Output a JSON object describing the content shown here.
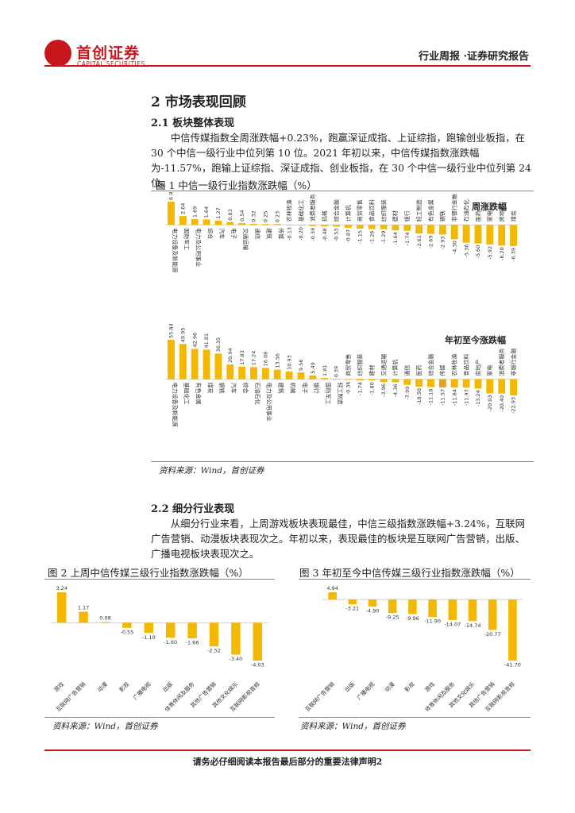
{
  "header": {
    "logo_cn": "首创证券",
    "logo_en": "CAPITAL SECURITIES",
    "report_type": "行业周报 ·证券研究报告"
  },
  "section2": {
    "title": "2 市场表现回顾",
    "sub1_title": "2.1  板块整体表现",
    "sub1_text": "中信传媒指数全周涨跌幅+0.23%，跑赢深证成指、上证综指，跑输创业板指，在 30 个中信一级行业中位列第 10 位。2021 年初以来，中信传媒指数涨跌幅为-11.57%，跑输上证综指、深证成指、创业板指，在 30 个中信一级行业中位列第 24 位。",
    "sub2_title": "2.2  细分行业表现",
    "sub2_text": "从细分行业来看，上周游戏板块表现最佳，中信三级指数涨跌幅+3.24%，互联网广告营销、动漫板块表现次之。年初以来，表现最佳的板块是互联网广告营销，出版、广播电视板块表现次之。"
  },
  "figure1": {
    "title": "图 1 中信一级行业指数涨跌幅（%）",
    "source": "资料来源：Wind，首创证券"
  },
  "figure2": {
    "title": "图 2 上周中信传媒三级行业指数涨跌幅（%）",
    "source": "资料来源：Wind，首创证券"
  },
  "figure3": {
    "title": "图 3 年初至今中信传媒三级行业指数涨跌幅（%）",
    "source": "资料来源：Wind，首创证券"
  },
  "footer": {
    "text": "请务必仔细阅读本报告最后部分的重要法律声明2"
  },
  "colors": {
    "brand_red": "#c8161d",
    "bar": "#f5b800",
    "bar_highlight": "#e8a21a"
  },
  "chart_data": [
    {
      "type": "bar",
      "label": "周涨跌幅",
      "categories": [
        "电力设备及新能源",
        "国防军工",
        "电力及公用事业",
        "综合",
        "汽车",
        "电子",
        "交通运输",
        "通信",
        "建筑",
        "传媒",
        "农林牧渔",
        "基础化工",
        "消费者服务",
        "机械",
        "综合金融",
        "计算机",
        "商贸零售",
        "食品饮料",
        "纺织服装",
        "建材",
        "银行",
        "轻工制造",
        "有色金属",
        "钢铁",
        "非银行金融",
        "石油石化",
        "医药",
        "家电",
        "房地产",
        "煤炭"
      ],
      "values": [
        6.96,
        2.64,
        1.69,
        1.64,
        1.27,
        0.83,
        0.54,
        0.32,
        0.25,
        0.23,
        -0.13,
        -0.2,
        -0.38,
        -0.48,
        -0.53,
        -0.87,
        -1.15,
        -1.26,
        -1.29,
        -1.64,
        -1.74,
        -2.61,
        -2.69,
        -2.93,
        -4.3,
        -5.36,
        -5.6,
        -5.92,
        -6.2,
        -6.39
      ]
    },
    {
      "type": "bar",
      "label": "年初至今涨跌幅",
      "categories": [
        "电力设备及新能源",
        "基础化工",
        "有色金属",
        "煤炭",
        "钢铁",
        "汽车",
        "综合",
        "石油石化",
        "电力及公用事业",
        "建筑",
        "机械",
        "电子",
        "银行",
        "国防军工",
        "轻工制造",
        "商贸零售",
        "纺织服装",
        "建材",
        "交通运输",
        "计算机",
        "通信",
        "医药",
        "综合金融",
        "传媒",
        "农林牧渔",
        "食品饮料",
        "房地产",
        "家电",
        "消费者服务",
        "非银行金融"
      ],
      "values": [
        55.84,
        49.95,
        42.96,
        41.81,
        36.35,
        20.94,
        17.83,
        17.24,
        16.08,
        13.56,
        10.93,
        9.56,
        5.49,
        1.81,
        0.39,
        -0.36,
        -1.74,
        -1.8,
        -3.96,
        -4.36,
        -7.99,
        -10.5,
        -11.18,
        -11.57,
        -11.84,
        -11.97,
        -13.24,
        -20.03,
        -20.4,
        -22.93
      ]
    },
    {
      "type": "bar",
      "label": "上周中信传媒三级行业指数涨跌幅",
      "categories": [
        "游戏",
        "互联网广告营销",
        "动漫",
        "影视",
        "广播电视",
        "出版",
        "体育休闲及服务",
        "其他广告营销",
        "其他文化娱乐",
        "互联网影视音频"
      ],
      "values": [
        3.24,
        1.17,
        0.08,
        -0.55,
        -1.1,
        -1.6,
        -1.66,
        -2.52,
        -3.4,
        -4.03
      ]
    },
    {
      "type": "bar",
      "label": "年初至今中信传媒三级行业指数涨跌幅",
      "categories": [
        "互联网广告营销",
        "出版",
        "广播电视",
        "动漫",
        "影视",
        "游戏",
        "体育休闲及服务",
        "其他文化娱乐",
        "其他广告营销",
        "互联网影视音频"
      ],
      "values": [
        4.94,
        -3.21,
        -4.9,
        -9.25,
        -9.96,
        -11.9,
        -14.07,
        -14.74,
        -20.77,
        -41.7
      ]
    }
  ]
}
